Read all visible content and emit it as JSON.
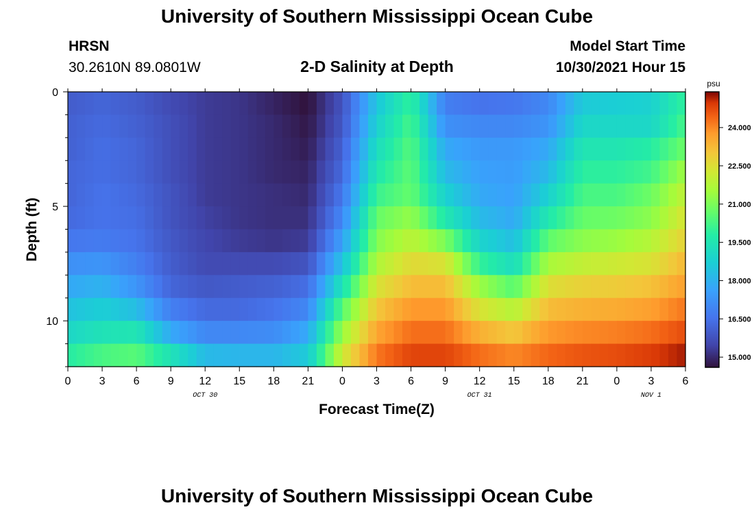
{
  "header": {
    "title": "University of Southern Mississippi Ocean Cube",
    "station": "HRSN",
    "coords": "30.2610N  89.0801W",
    "subtitle": "2-D Salinity at Depth",
    "model_label": "Model Start Time",
    "model_time": "10/30/2021 Hour 15",
    "footer_title": "University of Southern Mississippi Ocean Cube"
  },
  "chart_data": {
    "type": "heatmap",
    "title": "2-D Salinity at Depth",
    "xlabel": "Forecast Time(Z)",
    "ylabel": "Depth (ft)",
    "x_range_hours": [
      0,
      54
    ],
    "y_range_ft": [
      0,
      12
    ],
    "x_ticks": [
      {
        "h": 0,
        "label": "0"
      },
      {
        "h": 3,
        "label": "3"
      },
      {
        "h": 6,
        "label": "6"
      },
      {
        "h": 9,
        "label": "9"
      },
      {
        "h": 12,
        "label": "12"
      },
      {
        "h": 15,
        "label": "15"
      },
      {
        "h": 18,
        "label": "18"
      },
      {
        "h": 21,
        "label": "21"
      },
      {
        "h": 24,
        "label": "0"
      },
      {
        "h": 27,
        "label": "3"
      },
      {
        "h": 30,
        "label": "6"
      },
      {
        "h": 33,
        "label": "9"
      },
      {
        "h": 36,
        "label": "12"
      },
      {
        "h": 39,
        "label": "15"
      },
      {
        "h": 42,
        "label": "18"
      },
      {
        "h": 45,
        "label": "21"
      },
      {
        "h": 48,
        "label": "0"
      },
      {
        "h": 51,
        "label": "3"
      },
      {
        "h": 54,
        "label": "6"
      }
    ],
    "date_labels": [
      {
        "h": 12,
        "label": "OCT 30"
      },
      {
        "h": 36,
        "label": "OCT 31"
      },
      {
        "h": 51,
        "label": "NOV 1"
      }
    ],
    "y_ticks": [
      {
        "ft": 0,
        "label": "0"
      },
      {
        "ft": 5,
        "label": "5"
      },
      {
        "ft": 10,
        "label": "10"
      }
    ],
    "colorbar": {
      "unit": "psu",
      "min": 14.6,
      "max": 25.4,
      "tick_values": [
        15,
        16.5,
        18,
        19.5,
        21,
        22.5,
        24
      ],
      "ticks": [
        "15.000",
        "16.500",
        "18.000",
        "19.500",
        "21.000",
        "22.500",
        "24.000"
      ]
    },
    "depth_levels": 12,
    "grid_time_hours": [
      0,
      3,
      6,
      9,
      12,
      15,
      18,
      21,
      24,
      27,
      30,
      33,
      36,
      39,
      42,
      45,
      48,
      51,
      54
    ],
    "salinity_rows": [
      [
        16.0,
        16.2,
        16.0,
        15.6,
        15.3,
        15.2,
        14.9,
        14.6,
        15.8,
        18.5,
        20.0,
        16.8,
        16.5,
        16.6,
        17.0,
        18.6,
        18.7,
        18.8,
        20.0
      ],
      [
        16.1,
        16.3,
        16.1,
        15.7,
        15.3,
        15.2,
        15.0,
        14.7,
        15.9,
        18.8,
        20.3,
        17.2,
        17.0,
        17.0,
        17.3,
        19.0,
        19.0,
        19.0,
        20.3
      ],
      [
        16.1,
        16.4,
        16.2,
        15.7,
        15.3,
        15.2,
        15.0,
        14.8,
        16.1,
        19.2,
        20.5,
        17.8,
        17.4,
        17.4,
        17.8,
        19.5,
        19.5,
        19.8,
        20.8
      ],
      [
        16.2,
        16.4,
        16.2,
        15.7,
        15.3,
        15.2,
        15.0,
        14.9,
        16.3,
        19.6,
        20.6,
        18.2,
        17.6,
        17.5,
        18.2,
        19.9,
        19.9,
        20.2,
        21.5
      ],
      [
        16.2,
        16.5,
        16.3,
        15.8,
        15.3,
        15.2,
        15.1,
        15.0,
        16.6,
        20.1,
        20.7,
        18.8,
        17.8,
        17.6,
        18.8,
        20.3,
        20.3,
        20.8,
        22.0
      ],
      [
        16.3,
        16.5,
        16.4,
        15.8,
        15.4,
        15.2,
        15.1,
        15.1,
        17.0,
        20.7,
        21.3,
        19.6,
        18.2,
        17.8,
        19.6,
        20.7,
        20.8,
        21.2,
        22.4
      ],
      [
        16.6,
        16.7,
        16.5,
        15.9,
        15.5,
        15.3,
        15.2,
        15.3,
        17.6,
        21.1,
        21.9,
        21.0,
        18.9,
        18.3,
        20.6,
        21.2,
        21.4,
        21.8,
        22.8
      ],
      [
        17.2,
        17.3,
        16.8,
        16.0,
        15.6,
        15.6,
        15.6,
        15.8,
        18.4,
        21.7,
        22.6,
        22.4,
        20.0,
        19.2,
        21.6,
        22.0,
        22.2,
        22.4,
        23.3
      ],
      [
        17.8,
        18.0,
        17.3,
        16.2,
        15.9,
        16.0,
        16.1,
        16.4,
        19.4,
        22.4,
        23.2,
        23.2,
        21.4,
        20.5,
        22.5,
        22.8,
        22.9,
        23.1,
        23.7
      ],
      [
        18.4,
        18.7,
        18.3,
        16.8,
        16.3,
        16.3,
        16.5,
        17.0,
        20.5,
        23.0,
        23.8,
        23.8,
        22.4,
        21.8,
        23.2,
        23.4,
        23.5,
        23.7,
        24.2
      ],
      [
        19.0,
        19.4,
        19.5,
        17.8,
        17.0,
        17.0,
        17.1,
        17.8,
        21.4,
        23.6,
        24.3,
        24.3,
        23.4,
        23.0,
        23.8,
        24.0,
        24.1,
        24.3,
        24.7
      ],
      [
        19.8,
        20.3,
        20.5,
        19.4,
        18.2,
        18.1,
        18.1,
        18.6,
        22.2,
        24.2,
        24.8,
        24.8,
        24.3,
        24.0,
        24.4,
        24.6,
        24.7,
        24.9,
        25.2
      ]
    ]
  }
}
